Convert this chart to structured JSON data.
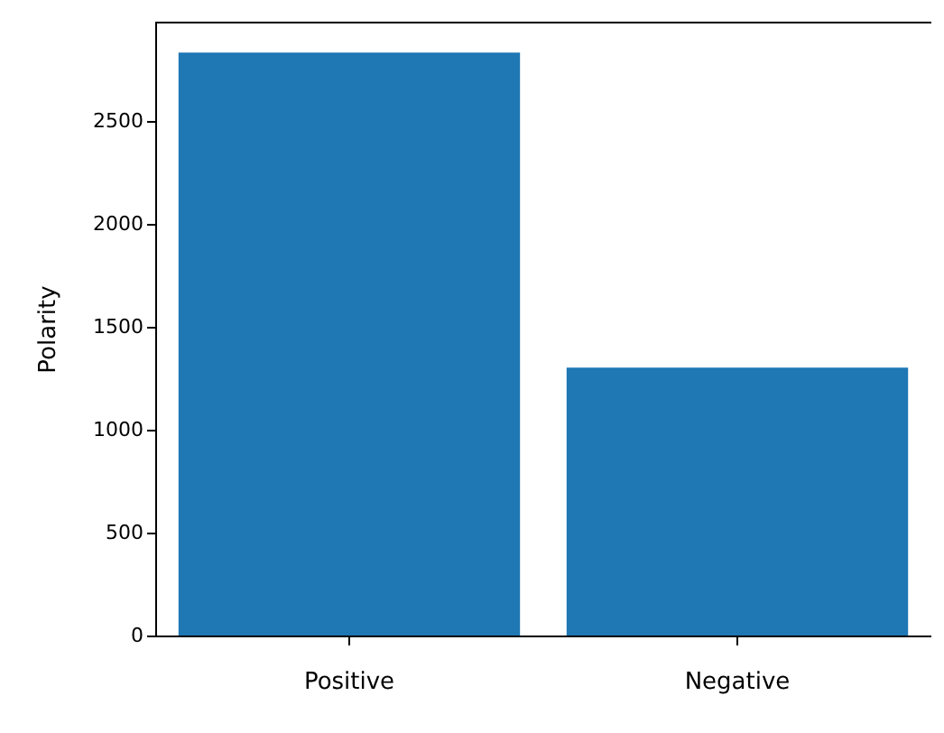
{
  "chart_data": {
    "type": "bar",
    "ylabel": "Polarity",
    "categories": [
      "Positive",
      "Negative"
    ],
    "values": [
      2830,
      1300
    ],
    "color": "#1f77b4",
    "ylim": [
      0,
      2980
    ],
    "yticks": [
      0,
      500,
      1000,
      1500,
      2000,
      2500
    ],
    "grid": false
  }
}
